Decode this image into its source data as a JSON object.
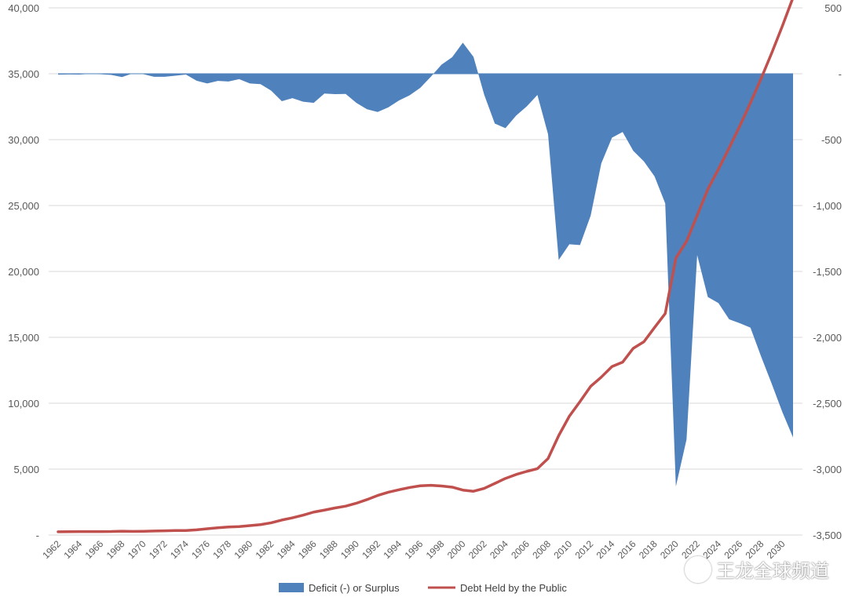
{
  "chart_data": {
    "type": "area+line",
    "title": "",
    "xlabel": "",
    "ylabel_left": "",
    "ylabel_right": "",
    "left_axis": {
      "min": 0,
      "max": 40000,
      "ticks": [
        0,
        5000,
        10000,
        15000,
        20000,
        25000,
        30000,
        35000,
        40000
      ],
      "tick_labels": [
        "-",
        "5,000",
        "10,000",
        "15,000",
        "20,000",
        "25,000",
        "30,000",
        "35,000",
        "40,000"
      ]
    },
    "right_axis": {
      "min": -3500,
      "max": 500,
      "ticks": [
        -3500,
        -3000,
        -2500,
        -2000,
        -1500,
        -1000,
        -500,
        0,
        500
      ],
      "tick_labels": [
        "-3,500",
        "-3,000",
        "-2,500",
        "-2,000",
        "-1,500",
        "-1,000",
        "-500",
        "-",
        "500"
      ]
    },
    "x_tick_labels": [
      "1962",
      "1964",
      "1966",
      "1968",
      "1970",
      "1972",
      "1974",
      "1976",
      "1978",
      "1980",
      "1982",
      "1984",
      "1986",
      "1988",
      "1990",
      "1992",
      "1994",
      "1996",
      "1998",
      "2000",
      "2002",
      "2004",
      "2006",
      "2008",
      "2010",
      "2012",
      "2014",
      "2016",
      "2018",
      "2020",
      "2022",
      "2024",
      "2026",
      "2028",
      "2030"
    ],
    "years": [
      1962,
      1963,
      1964,
      1965,
      1966,
      1967,
      1968,
      1969,
      1970,
      1971,
      1972,
      1973,
      1974,
      1975,
      1976,
      1977,
      1978,
      1979,
      1980,
      1981,
      1982,
      1983,
      1984,
      1985,
      1986,
      1987,
      1988,
      1989,
      1990,
      1991,
      1992,
      1993,
      1994,
      1995,
      1996,
      1997,
      1998,
      1999,
      2000,
      2001,
      2002,
      2003,
      2004,
      2005,
      2006,
      2007,
      2008,
      2009,
      2010,
      2011,
      2012,
      2013,
      2014,
      2015,
      2016,
      2017,
      2018,
      2019,
      2020,
      2021,
      2022,
      2023,
      2024,
      2025,
      2026,
      2027,
      2028,
      2029,
      2030,
      2031
    ],
    "series": [
      {
        "name": "Deficit (-) or Surplus",
        "type": "area",
        "axis": "right",
        "color": "#4f81bd",
        "values": [
          -7,
          -5,
          -6,
          -1,
          -4,
          -9,
          -25,
          3,
          -3,
          -23,
          -23,
          -15,
          -6,
          -53,
          -74,
          -54,
          -59,
          -41,
          -74,
          -79,
          -128,
          -208,
          -185,
          -212,
          -221,
          -150,
          -155,
          -153,
          -221,
          -269,
          -290,
          -255,
          -203,
          -164,
          -107,
          -22,
          69,
          126,
          236,
          128,
          -158,
          -378,
          -413,
          -318,
          -248,
          -161,
          -459,
          -1413,
          -1294,
          -1300,
          -1077,
          -680,
          -485,
          -442,
          -585,
          -665,
          -779,
          -984,
          -3132,
          -2775,
          -1376,
          -1694,
          -1740,
          -1863,
          -1893,
          -1926,
          -2145,
          -2353,
          -2568,
          -2760
        ]
      },
      {
        "name": "Debt Held by the Public",
        "type": "line",
        "axis": "left",
        "color": "#c0504d",
        "values": [
          248,
          254,
          257,
          261,
          264,
          267,
          290,
          278,
          283,
          303,
          322,
          341,
          344,
          395,
          477,
          549,
          607,
          640,
          712,
          789,
          925,
          1137,
          1307,
          1507,
          1741,
          1890,
          2052,
          2191,
          2412,
          2689,
          3000,
          3248,
          3433,
          3604,
          3734,
          3772,
          3721,
          3632,
          3410,
          3320,
          3540,
          3913,
          4295,
          4592,
          4829,
          5035,
          5803,
          7545,
          9019,
          10128,
          11281,
          11983,
          12780,
          13117,
          14168,
          14665,
          15750,
          16801,
          21017,
          22284,
          24252,
          26236,
          27766,
          29365,
          31035,
          32790,
          34631,
          36578,
          38625,
          40781
        ]
      }
    ],
    "legend": {
      "position": "bottom",
      "entries": [
        "Deficit (-) or Surplus",
        "Debt Held by the Public"
      ]
    }
  },
  "watermark": {
    "text": "王龙全球频道"
  }
}
